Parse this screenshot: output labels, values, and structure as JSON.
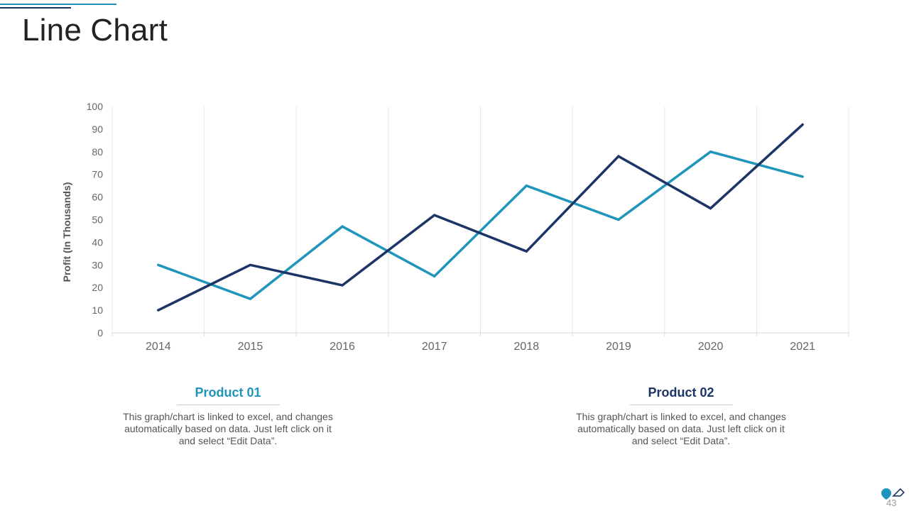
{
  "slide": {
    "title": "Line Chart",
    "page_number": "43"
  },
  "colors": {
    "product01": "#1f95bc",
    "product02": "#1c3566",
    "grid": "#e8e8e8",
    "axis_text": "#666666"
  },
  "legend": {
    "product01": {
      "title": "Product 01",
      "description": "This graph/chart is linked to excel, and changes automatically based on data. Just left click on it and select “Edit Data”."
    },
    "product02": {
      "title": "Product 02",
      "description": "This graph/chart is linked to excel, and changes automatically based on data. Just left click on it and select “Edit Data”."
    }
  },
  "chart_data": {
    "type": "line",
    "categories": [
      "2014",
      "2015",
      "2016",
      "2017",
      "2018",
      "2019",
      "2020",
      "2021"
    ],
    "series": [
      {
        "name": "Product 01",
        "values": [
          30,
          15,
          47,
          25,
          65,
          50,
          80,
          69
        ]
      },
      {
        "name": "Product 02",
        "values": [
          10,
          30,
          21,
          52,
          36,
          78,
          55,
          92
        ]
      }
    ],
    "title": "",
    "xlabel": "",
    "ylabel": "Profit (In Thousands)",
    "ylim": [
      0,
      100
    ],
    "yticks": [
      0,
      10,
      20,
      30,
      40,
      50,
      60,
      70,
      80,
      90,
      100
    ],
    "grid": "vertical",
    "legend": "bottom"
  }
}
